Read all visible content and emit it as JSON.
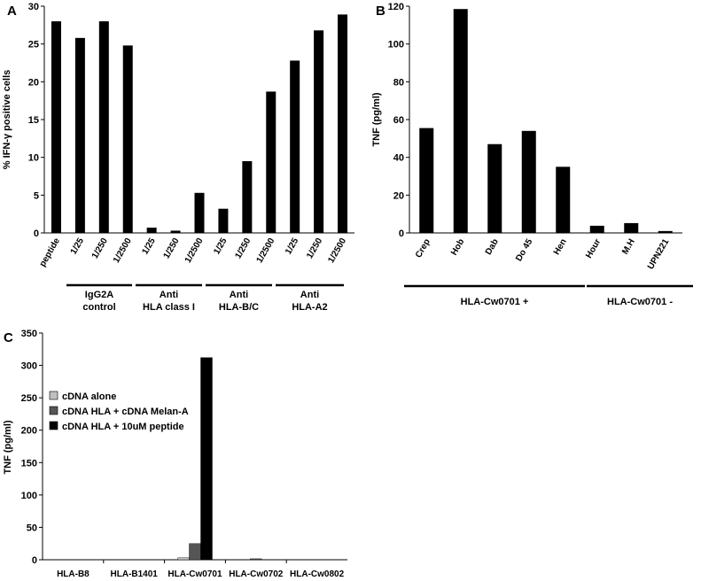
{
  "chart_data": [
    {
      "panel": "A",
      "type": "bar",
      "ylabel": "% IFN-γ positive cells",
      "ylim": [
        0,
        30
      ],
      "yticks": [
        0,
        5,
        10,
        15,
        20,
        25,
        30
      ],
      "categories": [
        "peptide",
        "1/25",
        "1/250",
        "1/2500",
        "1/25",
        "1/250",
        "1/2500",
        "1/25",
        "1/250",
        "1/2500",
        "1/25",
        "1/250",
        "1/2500"
      ],
      "values": [
        28,
        25.8,
        28,
        24.8,
        0.7,
        0.3,
        5.3,
        3.2,
        9.5,
        18.7,
        22.8,
        26.8,
        28.9
      ],
      "groups": [
        {
          "line1": "IgG2A",
          "line2": "control"
        },
        {
          "line1": "Anti",
          "line2": "HLA class I"
        },
        {
          "line1": "Anti",
          "line2": "HLA-B/C"
        },
        {
          "line1": "Anti",
          "line2": "HLA-A2"
        }
      ]
    },
    {
      "panel": "B",
      "type": "bar",
      "ylabel": "TNF (pg/ml)",
      "ylim": [
        0,
        120
      ],
      "yticks": [
        0,
        20,
        40,
        60,
        80,
        100,
        120
      ],
      "categories": [
        "Crep",
        "Hob",
        "Dab",
        "Do 45",
        "Hen",
        "Hour",
        "M.H",
        "UPN221"
      ],
      "values": [
        55.5,
        118.5,
        47,
        54,
        35,
        3.8,
        5.2,
        1
      ],
      "groups": [
        {
          "label": "HLA-Cw0701 +"
        },
        {
          "label": "HLA-Cw0701 -"
        }
      ]
    },
    {
      "panel": "C",
      "type": "bar",
      "ylabel": "TNF (pg/ml)",
      "ylim": [
        0,
        350
      ],
      "yticks": [
        0,
        50,
        100,
        150,
        200,
        250,
        300,
        350
      ],
      "categories": [
        "HLA-B8",
        "HLA-B1401",
        "HLA-Cw0701",
        "HLA-Cw0702",
        "HLA-Cw0802"
      ],
      "series": [
        {
          "name": "cDNA alone",
          "color": "#c0c0c0",
          "values": [
            0,
            0,
            3,
            0,
            0
          ]
        },
        {
          "name": "cDNA HLA + cDNA Melan-A",
          "color": "#555555",
          "values": [
            0,
            0,
            25,
            1.5,
            0
          ]
        },
        {
          "name": "cDNA HLA + 10uM peptide",
          "color": "#000000",
          "values": [
            0,
            0,
            312,
            0,
            0
          ]
        }
      ]
    }
  ]
}
